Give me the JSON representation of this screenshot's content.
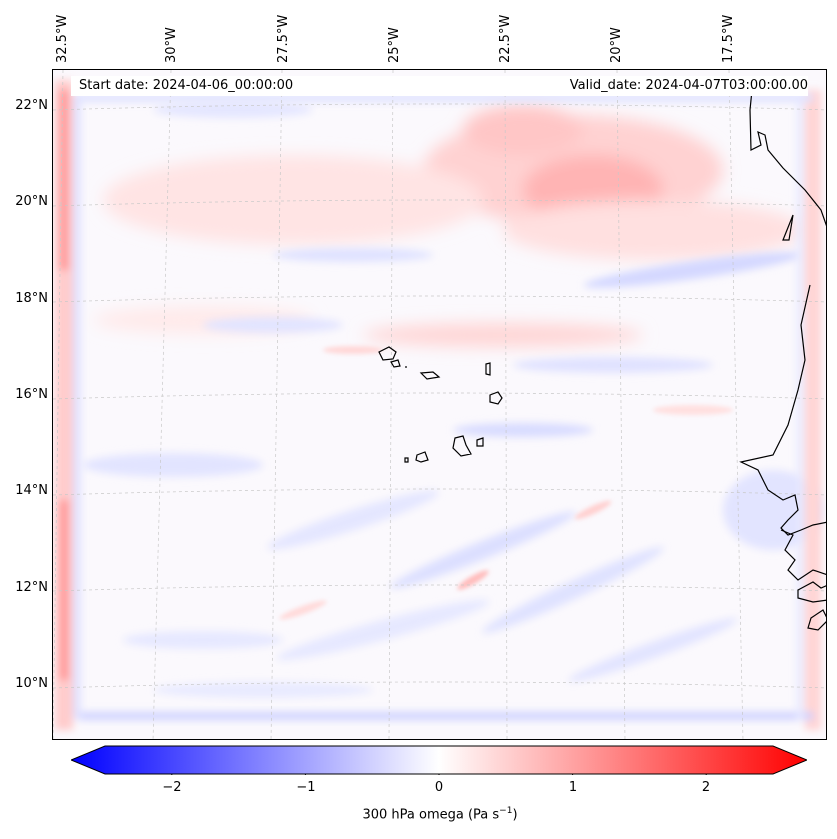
{
  "header": {
    "start_date": "Start date: 2024-04-06_00:00:00",
    "valid_date": "Valid_date: 2024-04-07T03:00:00.00"
  },
  "longitude_labels": [
    "32.5°W",
    "30°W",
    "27.5°W",
    "25°W",
    "22.5°W",
    "20°W",
    "17.5°W"
  ],
  "latitude_labels": [
    "22°N",
    "20°N",
    "18°N",
    "16°N",
    "14°N",
    "12°N",
    "10°N"
  ],
  "colorbar": {
    "label": "300 hPa omega (Pa s",
    "label_exponent": "−1",
    "label_close": ")",
    "ticks": [
      "−2",
      "−1",
      "0",
      "1",
      "2"
    ],
    "range": [
      -2.5,
      2.5
    ],
    "colormap": "bwr",
    "color_min": "#0000ff",
    "color_mid": "#ffffff",
    "color_max": "#ff0000"
  },
  "map": {
    "field": "300 hPa omega",
    "region": "Cape Verde / West African coast",
    "land_outline_color": "#000000",
    "grid_color": "#c8c8c8",
    "grid_style": "dashed"
  }
}
